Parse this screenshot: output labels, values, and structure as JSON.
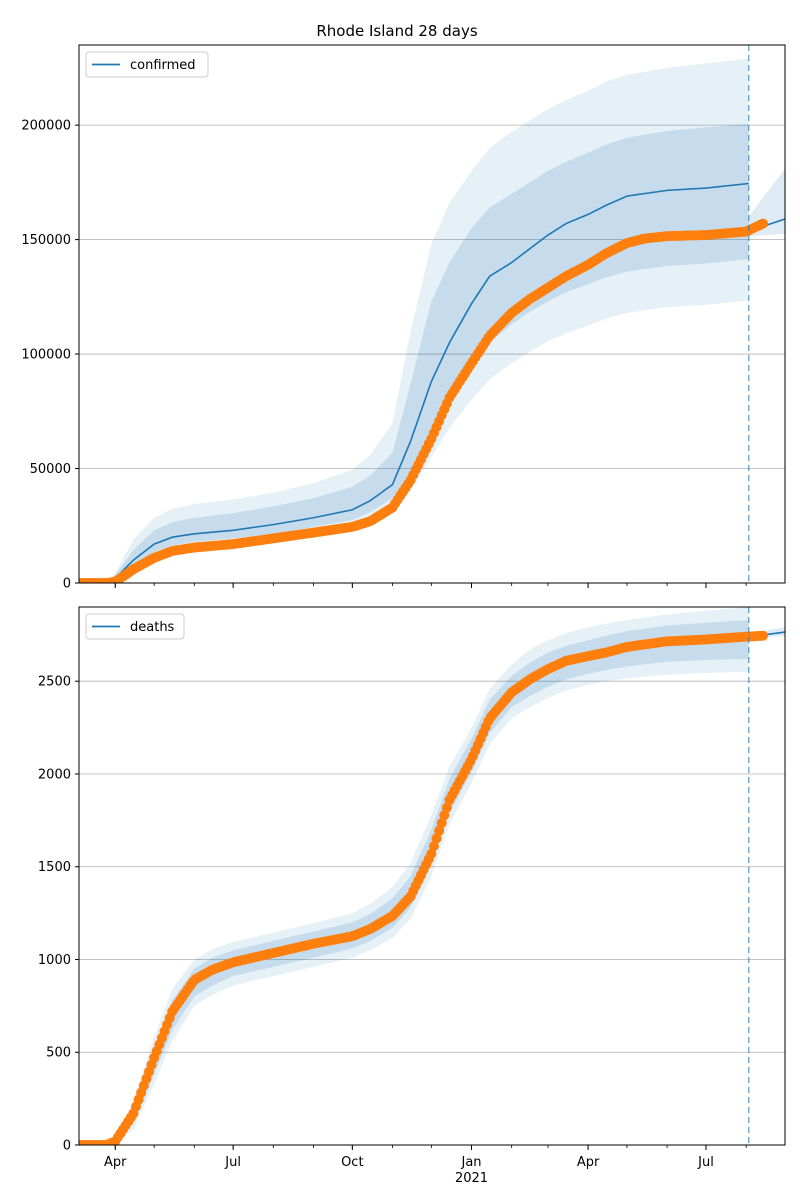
{
  "title": "Rhode Island 28 days",
  "colors": {
    "forecast_line": "#1f77b4",
    "band": "#1f77b4",
    "observed_points": "#ff7f0e",
    "grid": "#b0b0b0",
    "cutoff_line": "#1f77b4"
  },
  "x_axis": {
    "tick_labels": [
      "Apr",
      "Jul",
      "Oct",
      "Jan",
      "Apr",
      "Jul"
    ],
    "tick_dates": [
      "2020-04-01",
      "2020-07-01",
      "2020-10-01",
      "2021-01-01",
      "2021-04-01",
      "2021-07-01"
    ],
    "year_label": "2021",
    "range": [
      "2020-03-04",
      "2021-08-31"
    ]
  },
  "forecast_cutoff_date": "2021-08-03",
  "chart_data": [
    {
      "type": "line",
      "legend": "confirmed",
      "legend_position": "top-left",
      "grid": true,
      "ylim": [
        0,
        235000
      ],
      "yticks": [
        0,
        50000,
        100000,
        150000,
        200000
      ],
      "ytick_labels": [
        "0",
        "50000",
        "100000",
        "150000",
        "200000"
      ],
      "series": [
        {
          "name": "confirmed",
          "kind": "model-median",
          "dates": [
            "2020-03-04",
            "2020-03-25",
            "2020-04-01",
            "2020-04-15",
            "2020-05-01",
            "2020-05-15",
            "2020-06-01",
            "2020-07-01",
            "2020-08-01",
            "2020-09-01",
            "2020-10-01",
            "2020-10-15",
            "2020-11-01",
            "2020-11-15",
            "2020-12-01",
            "2020-12-15",
            "2021-01-01",
            "2021-01-15",
            "2021-02-01",
            "2021-02-15",
            "2021-03-01",
            "2021-03-15",
            "2021-04-01",
            "2021-04-15",
            "2021-05-01",
            "2021-06-01",
            "2021-07-01",
            "2021-08-03"
          ],
          "values": [
            0,
            0,
            2000,
            10000,
            17000,
            20000,
            21500,
            23000,
            25500,
            28500,
            32000,
            36000,
            43000,
            62000,
            88000,
            105000,
            122000,
            134000,
            140000,
            146000,
            152000,
            157000,
            161000,
            165000,
            169000,
            171500,
            172500,
            174500
          ]
        },
        {
          "name": "confirmed",
          "kind": "observed",
          "dates": [
            "2020-03-04",
            "2020-03-25",
            "2020-04-01",
            "2020-04-15",
            "2020-05-01",
            "2020-05-15",
            "2020-06-01",
            "2020-07-01",
            "2020-08-01",
            "2020-09-01",
            "2020-10-01",
            "2020-10-15",
            "2020-11-01",
            "2020-11-15",
            "2020-12-01",
            "2020-12-15",
            "2021-01-01",
            "2021-01-15",
            "2021-02-01",
            "2021-02-15",
            "2021-03-01",
            "2021-03-15",
            "2021-04-01",
            "2021-04-15",
            "2021-05-01",
            "2021-05-15",
            "2021-06-01",
            "2021-07-01",
            "2021-08-01",
            "2021-08-14"
          ],
          "values": [
            0,
            0,
            500,
            6000,
            11000,
            14000,
            15500,
            17000,
            19500,
            22000,
            24500,
            27000,
            33000,
            45000,
            63000,
            81000,
            96000,
            108000,
            118000,
            124000,
            129000,
            134000,
            139000,
            144000,
            148500,
            150500,
            151500,
            152000,
            153500,
            157000
          ]
        },
        {
          "name": "confirmed",
          "kind": "forecast-extension",
          "dates": [
            "2021-08-03",
            "2021-08-15",
            "2021-08-31"
          ],
          "values": [
            154500,
            156000,
            159000
          ]
        }
      ],
      "bands": [
        {
          "lower": [
            0,
            0,
            1500,
            7500,
            13500,
            16500,
            18000,
            19500,
            21500,
            24500,
            27500,
            31000,
            37000,
            48000,
            67000,
            81000,
            96000,
            105000,
            113000,
            118500,
            123000,
            127000,
            130500,
            133500,
            136000,
            138500,
            139500,
            141500
          ],
          "upper": [
            0,
            0,
            3500,
            14500,
            23000,
            26500,
            28500,
            30500,
            33500,
            37000,
            42000,
            47000,
            57000,
            87000,
            123000,
            140000,
            155000,
            164000,
            170000,
            175000,
            180000,
            184000,
            188000,
            191500,
            194500,
            197500,
            199000,
            200500
          ]
        },
        {
          "lower": [
            0,
            0,
            1000,
            5500,
            11000,
            13500,
            15000,
            16500,
            18500,
            21000,
            24000,
            27000,
            32000,
            40000,
            55000,
            68000,
            80000,
            89000,
            96000,
            101000,
            105500,
            109000,
            112500,
            115500,
            118000,
            120500,
            121500,
            123500
          ],
          "upper": [
            0,
            0,
            4500,
            19000,
            28500,
            32500,
            34500,
            36500,
            39500,
            43500,
            49500,
            56000,
            70000,
            110000,
            148000,
            166000,
            180000,
            190000,
            197000,
            202000,
            207000,
            211000,
            215000,
            219000,
            222000,
            225000,
            227000,
            229000
          ]
        }
      ],
      "bands_extension": {
        "dates": [
          "2021-08-03",
          "2021-08-31"
        ],
        "lower": [
          151500,
          152500
        ],
        "upper": [
          160000,
          181000
        ]
      }
    },
    {
      "type": "line",
      "legend": "deaths",
      "legend_position": "top-left",
      "grid": true,
      "ylim": [
        0,
        2900
      ],
      "yticks": [
        0,
        500,
        1000,
        1500,
        2000,
        2500
      ],
      "ytick_labels": [
        "0",
        "500",
        "1000",
        "1500",
        "2000",
        "2500"
      ],
      "series": [
        {
          "name": "deaths",
          "kind": "model-median",
          "dates": [
            "2020-03-04",
            "2020-03-25",
            "2020-04-01",
            "2020-04-15",
            "2020-05-01",
            "2020-05-15",
            "2020-06-01",
            "2020-06-15",
            "2020-07-01",
            "2020-08-01",
            "2020-09-01",
            "2020-10-01",
            "2020-10-15",
            "2020-11-01",
            "2020-11-15",
            "2020-12-01",
            "2020-12-15",
            "2021-01-01",
            "2021-01-15",
            "2021-02-01",
            "2021-02-15",
            "2021-03-01",
            "2021-03-15",
            "2021-04-01",
            "2021-04-15",
            "2021-05-01",
            "2021-06-01",
            "2021-07-01",
            "2021-08-03"
          ],
          "values": [
            0,
            0,
            15,
            150,
            450,
            700,
            880,
            940,
            980,
            1030,
            1080,
            1130,
            1175,
            1250,
            1360,
            1600,
            1880,
            2100,
            2310,
            2440,
            2510,
            2560,
            2600,
            2630,
            2655,
            2680,
            2715,
            2730,
            2740
          ]
        },
        {
          "name": "deaths",
          "kind": "observed",
          "dates": [
            "2020-03-04",
            "2020-03-25",
            "2020-04-01",
            "2020-04-15",
            "2020-05-01",
            "2020-05-15",
            "2020-06-01",
            "2020-06-15",
            "2020-07-01",
            "2020-08-01",
            "2020-09-01",
            "2020-10-01",
            "2020-10-15",
            "2020-11-01",
            "2020-11-15",
            "2020-12-01",
            "2020-12-15",
            "2021-01-01",
            "2021-01-15",
            "2021-02-01",
            "2021-02-15",
            "2021-03-01",
            "2021-03-15",
            "2021-04-01",
            "2021-04-15",
            "2021-05-01",
            "2021-06-01",
            "2021-07-01",
            "2021-08-01",
            "2021-08-14"
          ],
          "values": [
            0,
            0,
            20,
            170,
            470,
            720,
            890,
            945,
            985,
            1035,
            1085,
            1125,
            1165,
            1235,
            1340,
            1570,
            1860,
            2080,
            2300,
            2440,
            2510,
            2565,
            2610,
            2635,
            2655,
            2685,
            2715,
            2725,
            2740,
            2745
          ]
        },
        {
          "name": "deaths",
          "kind": "forecast-extension",
          "dates": [
            "2021-08-03",
            "2021-08-15",
            "2021-08-31"
          ],
          "values": [
            2740,
            2750,
            2765
          ]
        }
      ],
      "bands": [
        {
          "lower": [
            0,
            0,
            10,
            115,
            380,
            620,
            800,
            860,
            910,
            960,
            1010,
            1060,
            1100,
            1170,
            1280,
            1510,
            1790,
            2010,
            2220,
            2360,
            2420,
            2470,
            2510,
            2540,
            2560,
            2580,
            2605,
            2615,
            2620
          ],
          "upper": [
            0,
            0,
            22,
            195,
            520,
            780,
            950,
            1010,
            1050,
            1100,
            1150,
            1200,
            1245,
            1330,
            1450,
            1700,
            1975,
            2190,
            2400,
            2530,
            2600,
            2655,
            2690,
            2720,
            2745,
            2770,
            2800,
            2815,
            2830
          ]
        },
        {
          "lower": [
            0,
            0,
            6,
            85,
            330,
            560,
            750,
            810,
            860,
            910,
            960,
            1010,
            1050,
            1115,
            1220,
            1450,
            1730,
            1950,
            2160,
            2300,
            2360,
            2410,
            2450,
            2480,
            2500,
            2515,
            2535,
            2545,
            2550
          ],
          "upper": [
            0,
            0,
            30,
            240,
            580,
            840,
            1000,
            1055,
            1095,
            1145,
            1195,
            1250,
            1300,
            1390,
            1520,
            1780,
            2040,
            2250,
            2460,
            2590,
            2670,
            2720,
            2760,
            2790,
            2810,
            2830,
            2860,
            2880,
            2900
          ]
        }
      ],
      "bands_extension": {
        "dates": [
          "2021-08-03",
          "2021-08-31"
        ],
        "lower": [
          2730,
          2745
        ],
        "upper": [
          2760,
          2790
        ]
      }
    }
  ]
}
